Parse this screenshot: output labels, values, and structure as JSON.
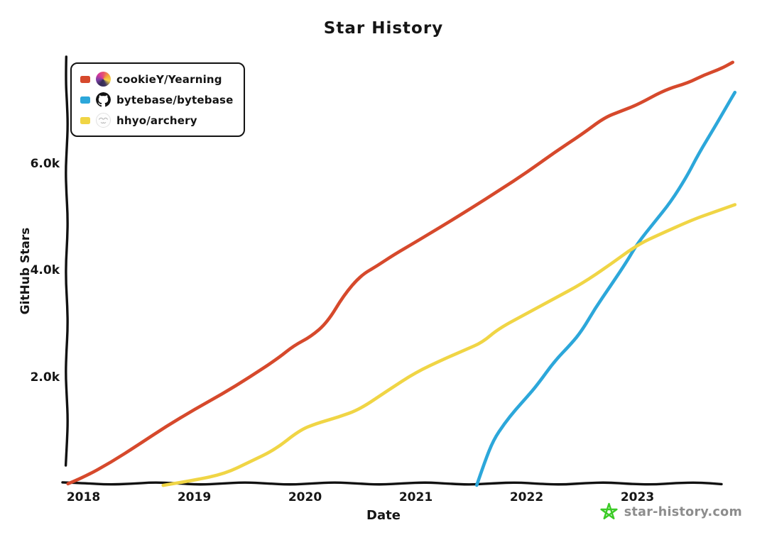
{
  "title": "Star History",
  "axes": {
    "x_label": "Date",
    "y_label": "GitHub Stars",
    "x_ticks": [
      {
        "label": "2018",
        "year": 2018
      },
      {
        "label": "2019",
        "year": 2019
      },
      {
        "label": "2020",
        "year": 2020
      },
      {
        "label": "2021",
        "year": 2021
      },
      {
        "label": "2022",
        "year": 2022
      },
      {
        "label": "2023",
        "year": 2023
      }
    ],
    "y_ticks": [
      {
        "label": "2.0k",
        "value": 2000
      },
      {
        "label": "4.0k",
        "value": 4000
      },
      {
        "label": "6.0k",
        "value": 6000
      }
    ]
  },
  "legend": {
    "items": [
      {
        "label": "cookieY/Yearning",
        "color": "#d6492c",
        "avatar": "cookiey-avatar"
      },
      {
        "label": "bytebase/bytebase",
        "color": "#2ca7da",
        "avatar": "bytebase-octocat-avatar"
      },
      {
        "label": "hhyo/archery",
        "color": "#f0d545",
        "avatar": "hhyo-avatar"
      }
    ]
  },
  "watermark": {
    "text": "star-history.com",
    "star_color": "#3ccb27",
    "text_color": "#8d8d8d"
  },
  "chart_data": {
    "type": "line",
    "title": "Star History",
    "xlabel": "Date",
    "ylabel": "GitHub Stars",
    "x_unit": "decimal_year",
    "xlim": [
      2017.85,
      2023.93
    ],
    "ylim": [
      0,
      8000
    ],
    "grid": false,
    "legend_position": "top-left",
    "axis_color": "#111111",
    "series": [
      {
        "name": "cookieY/Yearning",
        "color": "#d6492c",
        "points": [
          [
            2017.86,
            0
          ],
          [
            2018.0,
            120
          ],
          [
            2018.25,
            430
          ],
          [
            2018.5,
            760
          ],
          [
            2018.75,
            1080
          ],
          [
            2019.0,
            1400
          ],
          [
            2019.25,
            1710
          ],
          [
            2019.5,
            2010
          ],
          [
            2019.75,
            2340
          ],
          [
            2019.9,
            2600
          ],
          [
            2020.05,
            2780
          ],
          [
            2020.2,
            3050
          ],
          [
            2020.35,
            3550
          ],
          [
            2020.5,
            3900
          ],
          [
            2020.65,
            4080
          ],
          [
            2020.8,
            4300
          ],
          [
            2021.0,
            4560
          ],
          [
            2021.25,
            4860
          ],
          [
            2021.5,
            5160
          ],
          [
            2021.75,
            5510
          ],
          [
            2022.0,
            5860
          ],
          [
            2022.25,
            6210
          ],
          [
            2022.5,
            6550
          ],
          [
            2022.7,
            6880
          ],
          [
            2022.85,
            7010
          ],
          [
            2023.0,
            7120
          ],
          [
            2023.25,
            7380
          ],
          [
            2023.46,
            7520
          ],
          [
            2023.6,
            7680
          ],
          [
            2023.75,
            7800
          ],
          [
            2023.86,
            7920
          ]
        ]
      },
      {
        "name": "bytebase/bytebase",
        "color": "#2ca7da",
        "points": [
          [
            2021.55,
            0
          ],
          [
            2021.62,
            430
          ],
          [
            2021.7,
            850
          ],
          [
            2021.8,
            1150
          ],
          [
            2021.9,
            1400
          ],
          [
            2022.0,
            1620
          ],
          [
            2022.1,
            1860
          ],
          [
            2022.25,
            2300
          ],
          [
            2022.4,
            2640
          ],
          [
            2022.5,
            2900
          ],
          [
            2022.62,
            3320
          ],
          [
            2022.75,
            3700
          ],
          [
            2022.9,
            4150
          ],
          [
            2023.0,
            4500
          ],
          [
            2023.15,
            4900
          ],
          [
            2023.3,
            5300
          ],
          [
            2023.45,
            5800
          ],
          [
            2023.55,
            6200
          ],
          [
            2023.7,
            6700
          ],
          [
            2023.8,
            7050
          ],
          [
            2023.88,
            7330
          ]
        ]
      },
      {
        "name": "hhyo/archery",
        "color": "#f0d545",
        "points": [
          [
            2018.72,
            0
          ],
          [
            2019.0,
            70
          ],
          [
            2019.28,
            200
          ],
          [
            2019.5,
            440
          ],
          [
            2019.73,
            660
          ],
          [
            2019.95,
            1000
          ],
          [
            2020.1,
            1130
          ],
          [
            2020.3,
            1270
          ],
          [
            2020.5,
            1430
          ],
          [
            2020.75,
            1760
          ],
          [
            2021.0,
            2090
          ],
          [
            2021.25,
            2360
          ],
          [
            2021.45,
            2540
          ],
          [
            2021.6,
            2660
          ],
          [
            2021.75,
            2910
          ],
          [
            2022.0,
            3200
          ],
          [
            2022.25,
            3500
          ],
          [
            2022.5,
            3760
          ],
          [
            2022.75,
            4100
          ],
          [
            2023.0,
            4500
          ],
          [
            2023.2,
            4700
          ],
          [
            2023.5,
            4950
          ],
          [
            2023.7,
            5100
          ],
          [
            2023.88,
            5250
          ]
        ]
      }
    ]
  }
}
